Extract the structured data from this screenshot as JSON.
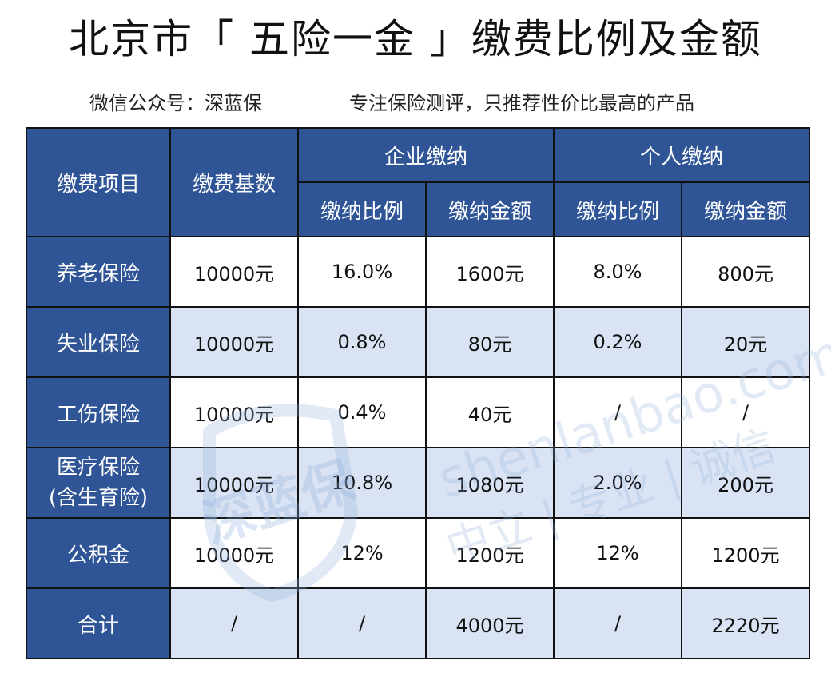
{
  "title": "北京市「 五险一金 」缴费比例及金额",
  "subtitle": {
    "left": "微信公众号：深蓝保",
    "right": "专注保险测评，只推荐性价比最高的产品"
  },
  "table": {
    "col_item": "缴费项目",
    "col_base": "缴费基数",
    "group_company": "企业缴纳",
    "group_personal": "个人缴纳",
    "sub_ratio": "缴纳比例",
    "sub_amount": "缴纳金额",
    "rows": [
      {
        "item": "养老保险",
        "base": "10000元",
        "c_ratio": "16.0%",
        "c_amount": "1600元",
        "p_ratio": "8.0%",
        "p_amount": "800元"
      },
      {
        "item": "失业保险",
        "base": "10000元",
        "c_ratio": "0.8%",
        "c_amount": "80元",
        "p_ratio": "0.2%",
        "p_amount": "20元"
      },
      {
        "item": "工伤保险",
        "base": "10000元",
        "c_ratio": "0.4%",
        "c_amount": "40元",
        "p_ratio": "/",
        "p_amount": "/"
      },
      {
        "item_line1": "医疗保险",
        "item_line2": "(含生育险)",
        "base": "10000元",
        "c_ratio": "10.8%",
        "c_amount": "1080元",
        "p_ratio": "2.0%",
        "p_amount": "200元"
      },
      {
        "item": "公积金",
        "base": "10000元",
        "c_ratio": "12%",
        "c_amount": "1200元",
        "p_ratio": "12%",
        "p_amount": "1200元"
      },
      {
        "item": "合计",
        "base": "/",
        "c_ratio": "/",
        "c_amount": "4000元",
        "p_ratio": "/",
        "p_amount": "2220元"
      }
    ]
  },
  "watermark": {
    "logo": "深蓝保",
    "domain": "shenlanbao.com",
    "slogan": "中立 | 专业 | 诚信",
    "color": "#8fb0dc"
  }
}
